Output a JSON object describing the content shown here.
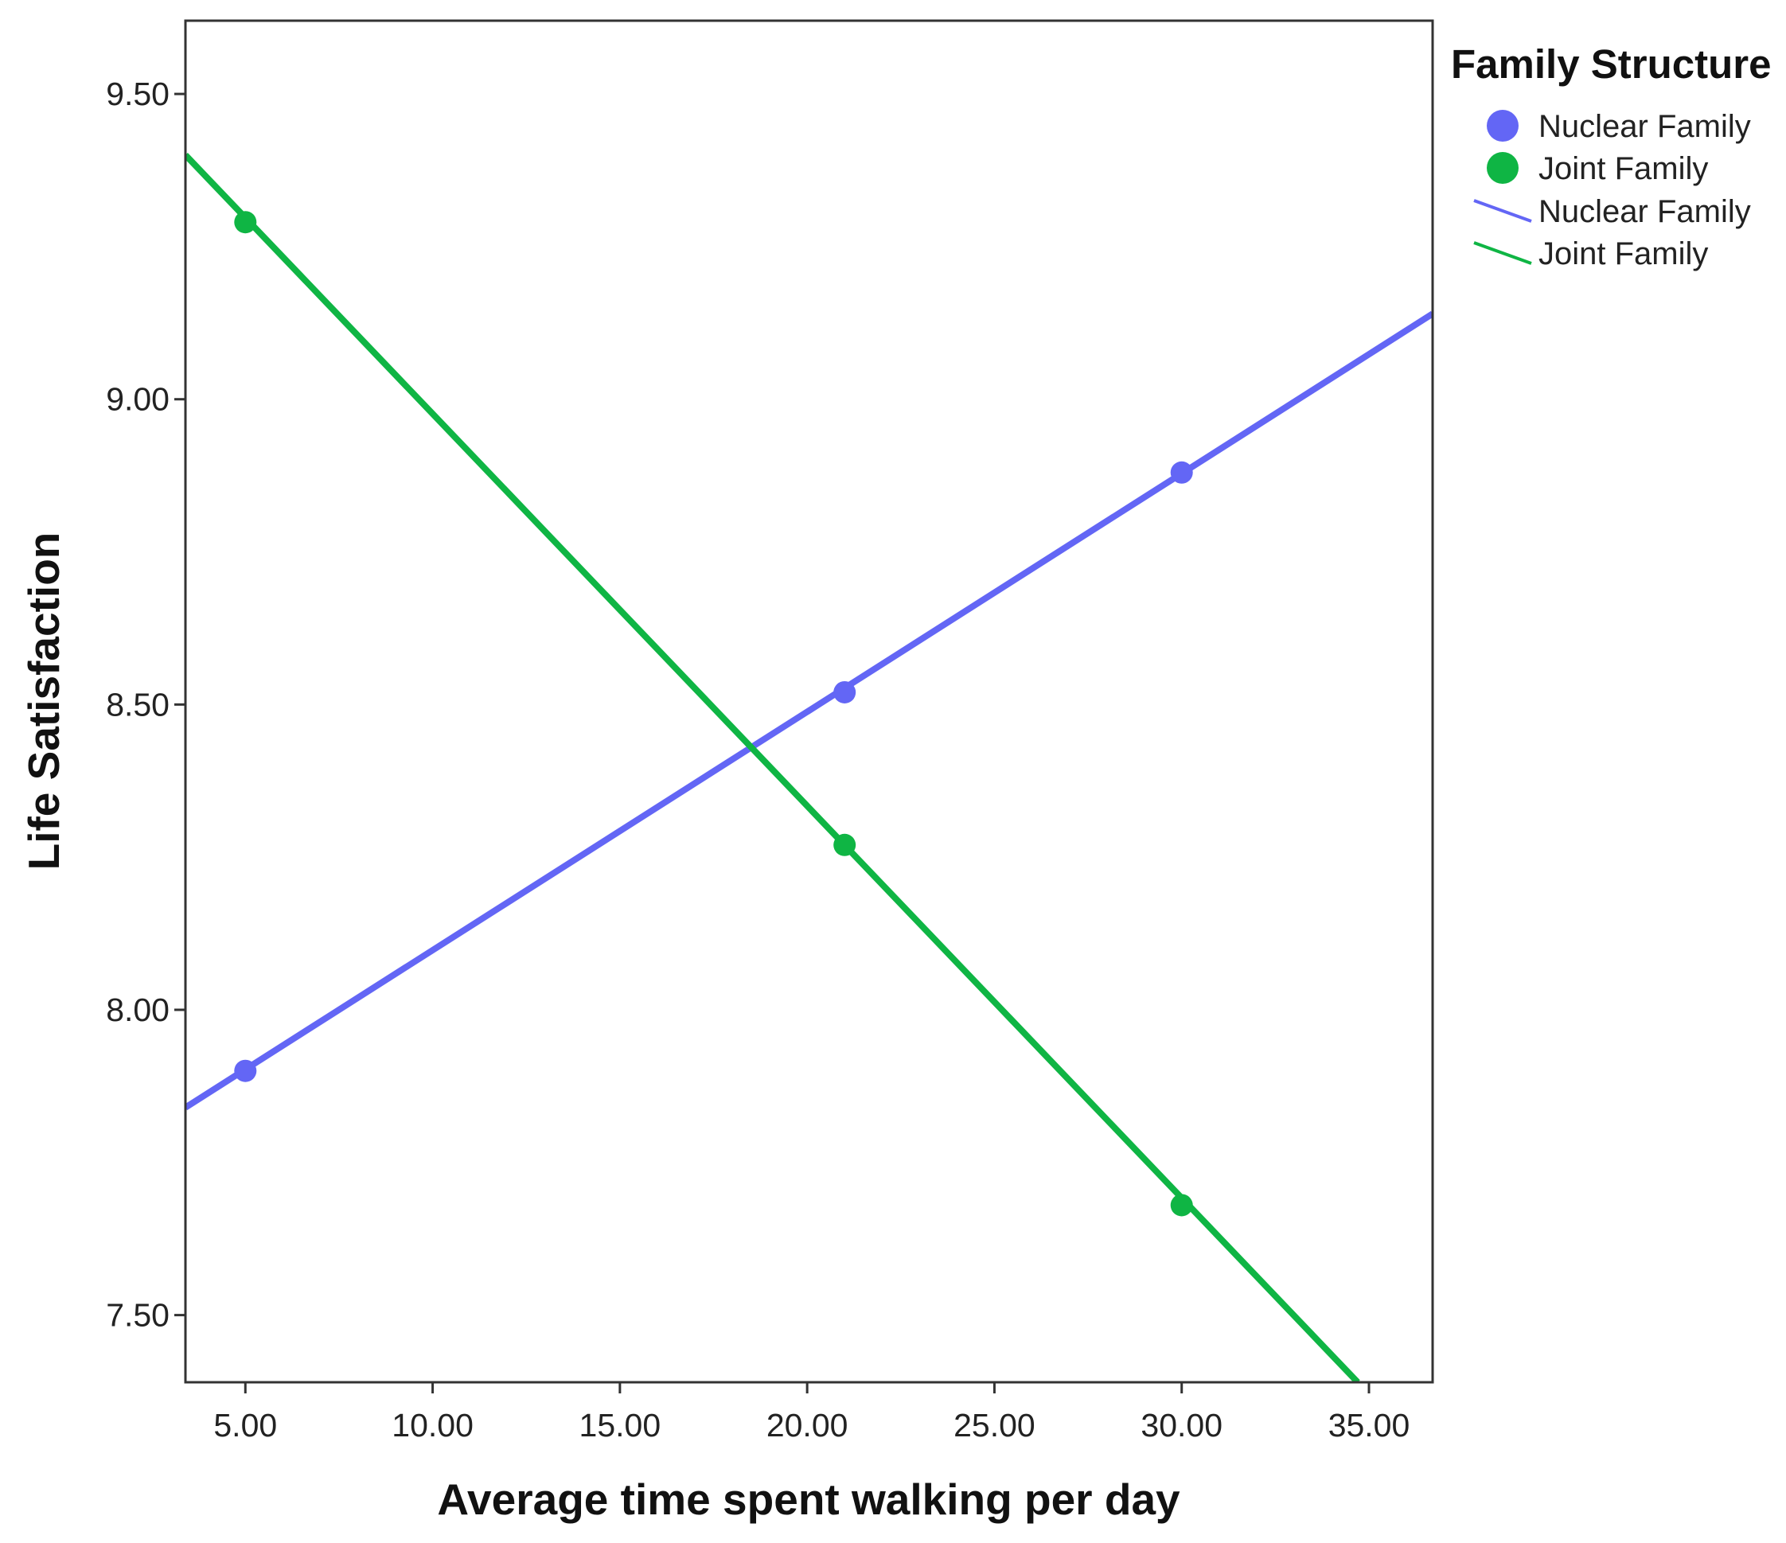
{
  "chart_data": {
    "type": "line",
    "title": "",
    "xlabel": "Average time spent walking per day",
    "ylabel": "Life Satisfaction",
    "xlim": [
      3.4,
      36.7
    ],
    "ylim": [
      7.39,
      9.62
    ],
    "x_ticks": [
      5,
      10,
      15,
      20,
      25,
      30,
      35
    ],
    "x_tick_labels": [
      "5.00",
      "10.00",
      "15.00",
      "20.00",
      "25.00",
      "30.00",
      "35.00"
    ],
    "y_ticks": [
      7.5,
      8.0,
      8.5,
      9.0,
      9.5
    ],
    "y_tick_labels": [
      "7.50",
      "8.00",
      "8.50",
      "9.00",
      "9.50"
    ],
    "grid": false,
    "legend": {
      "title": "Family Structure",
      "placement": "right",
      "entries": [
        {
          "label": "Nuclear Family",
          "kind": "marker",
          "color": "#6366f5"
        },
        {
          "label": "Joint Family",
          "kind": "marker",
          "color": "#0fb544"
        },
        {
          "label": "Nuclear Family",
          "kind": "line",
          "color": "#6366f5"
        },
        {
          "label": "Joint Family",
          "kind": "line",
          "color": "#0fb544"
        }
      ]
    },
    "series": [
      {
        "name": "Nuclear Family",
        "color": "#6366f5",
        "points": [
          {
            "x": 5,
            "y": 7.9
          },
          {
            "x": 21,
            "y": 8.52
          },
          {
            "x": 30,
            "y": 8.88
          }
        ],
        "fit_line": [
          {
            "x": 3.4,
            "y": 7.84
          },
          {
            "x": 36.7,
            "y": 9.14
          }
        ]
      },
      {
        "name": "Joint Family",
        "color": "#0fb544",
        "points": [
          {
            "x": 5,
            "y": 9.29
          },
          {
            "x": 21,
            "y": 8.27
          },
          {
            "x": 30,
            "y": 7.68
          }
        ],
        "fit_line": [
          {
            "x": 3.4,
            "y": 9.4
          },
          {
            "x": 34.7,
            "y": 7.39
          }
        ]
      }
    ]
  }
}
